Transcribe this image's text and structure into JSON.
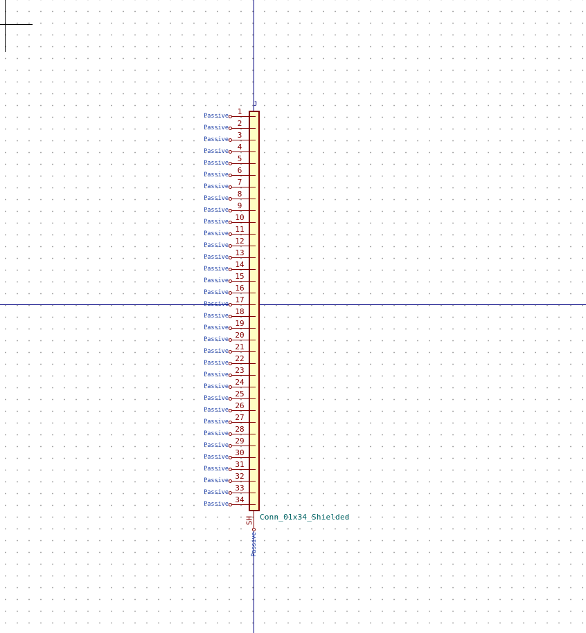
{
  "component": {
    "reference": "J",
    "value": "Conn_01x34_Shielded",
    "pins": [
      {
        "number": "1",
        "type": "Passive"
      },
      {
        "number": "2",
        "type": "Passive"
      },
      {
        "number": "3",
        "type": "Passive"
      },
      {
        "number": "4",
        "type": "Passive"
      },
      {
        "number": "5",
        "type": "Passive"
      },
      {
        "number": "6",
        "type": "Passive"
      },
      {
        "number": "7",
        "type": "Passive"
      },
      {
        "number": "8",
        "type": "Passive"
      },
      {
        "number": "9",
        "type": "Passive"
      },
      {
        "number": "10",
        "type": "Passive"
      },
      {
        "number": "11",
        "type": "Passive"
      },
      {
        "number": "12",
        "type": "Passive"
      },
      {
        "number": "13",
        "type": "Passive"
      },
      {
        "number": "14",
        "type": "Passive"
      },
      {
        "number": "15",
        "type": "Passive"
      },
      {
        "number": "16",
        "type": "Passive"
      },
      {
        "number": "17",
        "type": "Passive"
      },
      {
        "number": "18",
        "type": "Passive"
      },
      {
        "number": "19",
        "type": "Passive"
      },
      {
        "number": "20",
        "type": "Passive"
      },
      {
        "number": "21",
        "type": "Passive"
      },
      {
        "number": "22",
        "type": "Passive"
      },
      {
        "number": "23",
        "type": "Passive"
      },
      {
        "number": "24",
        "type": "Passive"
      },
      {
        "number": "25",
        "type": "Passive"
      },
      {
        "number": "26",
        "type": "Passive"
      },
      {
        "number": "27",
        "type": "Passive"
      },
      {
        "number": "28",
        "type": "Passive"
      },
      {
        "number": "29",
        "type": "Passive"
      },
      {
        "number": "30",
        "type": "Passive"
      },
      {
        "number": "31",
        "type": "Passive"
      },
      {
        "number": "32",
        "type": "Passive"
      },
      {
        "number": "33",
        "type": "Passive"
      },
      {
        "number": "34",
        "type": "Passive"
      }
    ],
    "shield_pin": {
      "number": "SH",
      "type": "Passive"
    }
  },
  "colors": {
    "pin": "#840000",
    "body_fill": "#ffffc2",
    "pin_type": "#1d3fa7",
    "value": "#006464",
    "axis": "#000080"
  }
}
